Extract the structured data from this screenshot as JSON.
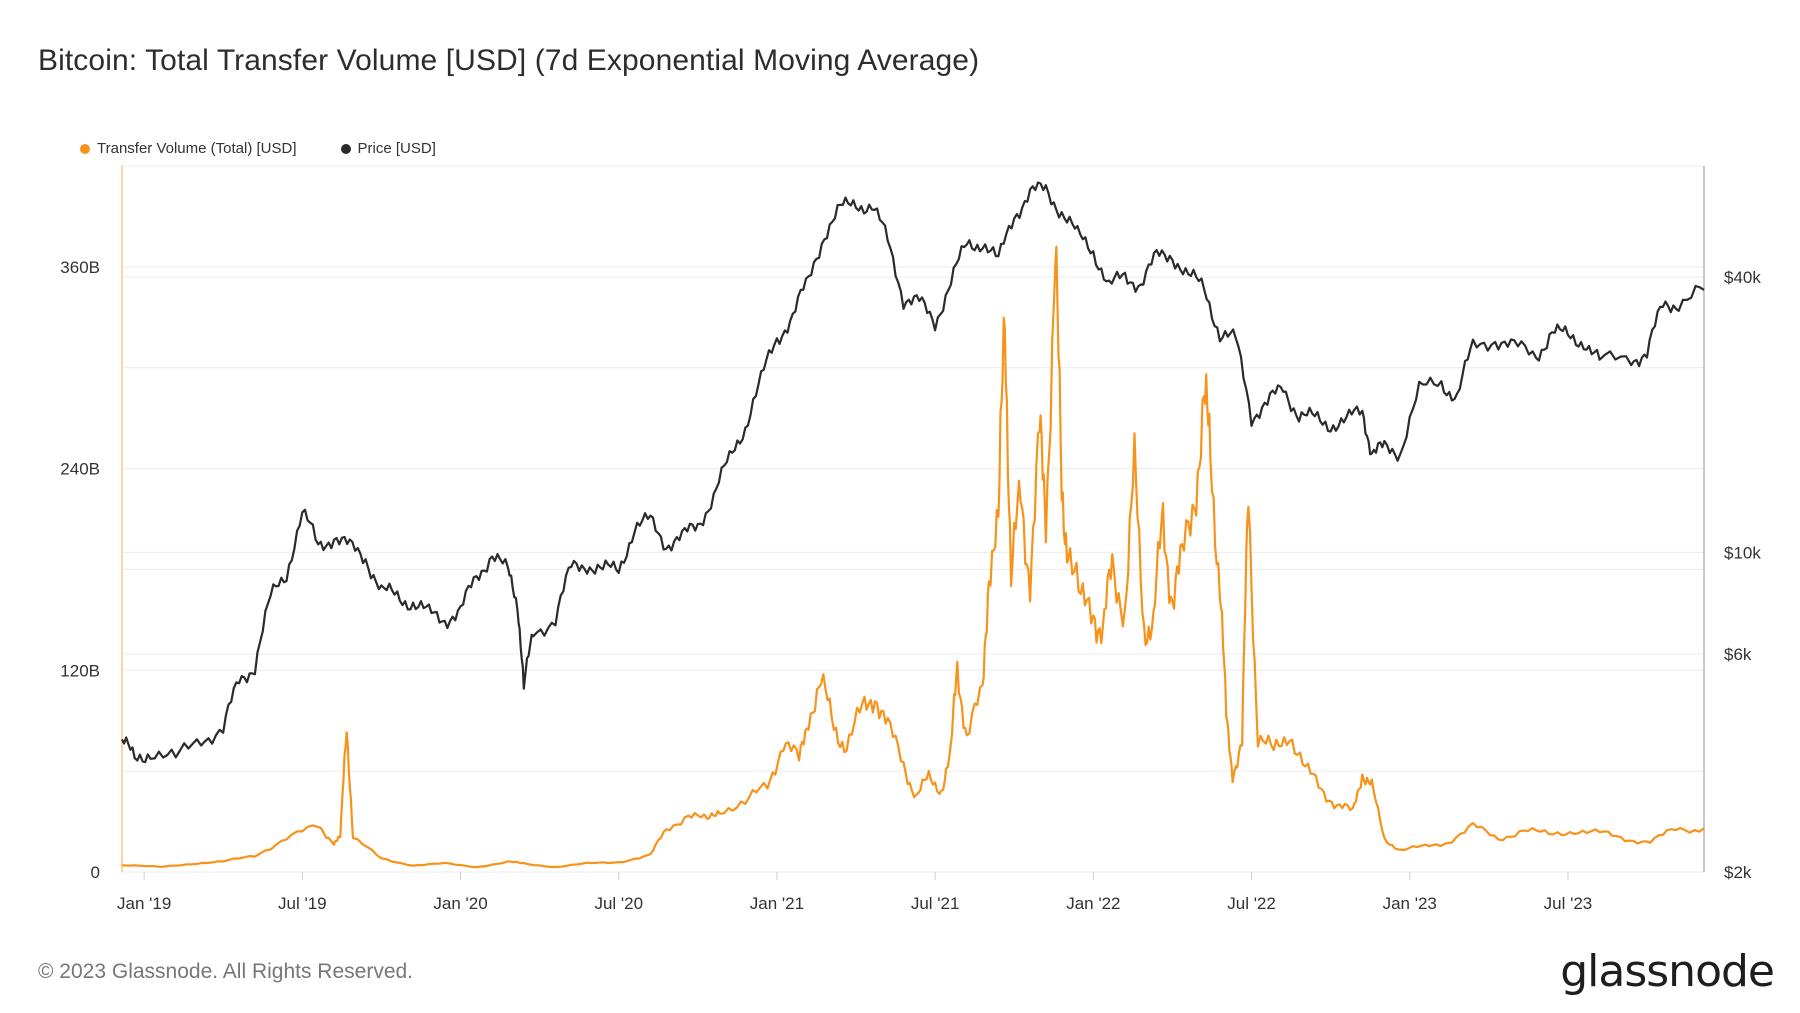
{
  "title": "Bitcoin: Total Transfer Volume [USD] (7d Exponential Moving Average)",
  "footer": "© 2023 Glassnode. All Rights Reserved.",
  "brand": "glassnode",
  "colors": {
    "volume": "#f7931a",
    "price": "#2b2b2b",
    "grid": "#ececec",
    "axis": "#cfcfcf"
  },
  "chart_data": {
    "type": "line",
    "title": "Bitcoin: Total Transfer Volume [USD] (7d Exponential Moving Average)",
    "legend_position": "top-left",
    "x_domain": [
      2018.93,
      2023.93
    ],
    "x_ticks": [
      {
        "label": "Jan '19",
        "x": 2019.0
      },
      {
        "label": "Jul '19",
        "x": 2019.5
      },
      {
        "label": "Jan '20",
        "x": 2020.0
      },
      {
        "label": "Jul '20",
        "x": 2020.5
      },
      {
        "label": "Jan '21",
        "x": 2021.0
      },
      {
        "label": "Jul '21",
        "x": 2021.5
      },
      {
        "label": "Jan '22",
        "x": 2022.0
      },
      {
        "label": "Jul '22",
        "x": 2022.5
      },
      {
        "label": "Jan '23",
        "x": 2023.0
      },
      {
        "label": "Jul '23",
        "x": 2023.5
      }
    ],
    "y_left": {
      "min": 0,
      "max": 420,
      "unit": "B",
      "ticks": [
        {
          "label": "0",
          "v": 0
        },
        {
          "label": "120B",
          "v": 120
        },
        {
          "label": "240B",
          "v": 240
        },
        {
          "label": "360B",
          "v": 360
        }
      ]
    },
    "y_right": {
      "scale": "log",
      "min": 2000,
      "max": 70000,
      "ticks": [
        {
          "label": "$2k",
          "v": 2000
        },
        {
          "label": "$6k",
          "v": 6000
        },
        {
          "label": "$10k",
          "v": 10000
        },
        {
          "label": "$40k",
          "v": 40000
        }
      ]
    },
    "series": [
      {
        "name": "Transfer Volume (Total) [USD]",
        "axis": "left",
        "color": "#f7931a",
        "points": [
          [
            2018.93,
            4
          ],
          [
            2019.05,
            3
          ],
          [
            2019.15,
            5
          ],
          [
            2019.25,
            6
          ],
          [
            2019.35,
            10
          ],
          [
            2019.45,
            20
          ],
          [
            2019.55,
            27
          ],
          [
            2019.6,
            18
          ],
          [
            2019.62,
            20
          ],
          [
            2019.64,
            90
          ],
          [
            2019.66,
            20
          ],
          [
            2019.75,
            8
          ],
          [
            2019.85,
            4
          ],
          [
            2019.95,
            5
          ],
          [
            2020.05,
            3
          ],
          [
            2020.15,
            6
          ],
          [
            2020.2,
            5
          ],
          [
            2020.3,
            3
          ],
          [
            2020.4,
            5
          ],
          [
            2020.5,
            6
          ],
          [
            2020.6,
            10
          ],
          [
            2020.65,
            25
          ],
          [
            2020.72,
            35
          ],
          [
            2020.78,
            30
          ],
          [
            2020.82,
            38
          ],
          [
            2020.9,
            40
          ],
          [
            2020.97,
            52
          ],
          [
            2021.02,
            78
          ],
          [
            2021.07,
            65
          ],
          [
            2021.1,
            95
          ],
          [
            2021.14,
            110
          ],
          [
            2021.18,
            88
          ],
          [
            2021.22,
            75
          ],
          [
            2021.27,
            95
          ],
          [
            2021.31,
            108
          ],
          [
            2021.35,
            85
          ],
          [
            2021.4,
            65
          ],
          [
            2021.44,
            45
          ],
          [
            2021.48,
            55
          ],
          [
            2021.52,
            50
          ],
          [
            2021.55,
            70
          ],
          [
            2021.57,
            125
          ],
          [
            2021.6,
            80
          ],
          [
            2021.65,
            105
          ],
          [
            2021.67,
            185
          ],
          [
            2021.7,
            200
          ],
          [
            2021.72,
            345
          ],
          [
            2021.74,
            175
          ],
          [
            2021.77,
            220
          ],
          [
            2021.8,
            180
          ],
          [
            2021.83,
            255
          ],
          [
            2021.85,
            215
          ],
          [
            2021.88,
            370
          ],
          [
            2021.9,
            220
          ],
          [
            2021.92,
            200
          ],
          [
            2021.96,
            155
          ],
          [
            2022.0,
            160
          ],
          [
            2022.03,
            140
          ],
          [
            2022.06,
            180
          ],
          [
            2022.1,
            160
          ],
          [
            2022.13,
            235
          ],
          [
            2022.16,
            150
          ],
          [
            2022.19,
            145
          ],
          [
            2022.22,
            210
          ],
          [
            2022.25,
            165
          ],
          [
            2022.28,
            180
          ],
          [
            2022.32,
            230
          ],
          [
            2022.35,
            275
          ],
          [
            2022.37,
            250
          ],
          [
            2022.4,
            175
          ],
          [
            2022.42,
            90
          ],
          [
            2022.44,
            60
          ],
          [
            2022.47,
            75
          ],
          [
            2022.49,
            228
          ],
          [
            2022.52,
            80
          ],
          [
            2022.57,
            70
          ],
          [
            2022.62,
            85
          ],
          [
            2022.67,
            60
          ],
          [
            2022.72,
            50
          ],
          [
            2022.77,
            40
          ],
          [
            2022.82,
            35
          ],
          [
            2022.85,
            60
          ],
          [
            2022.88,
            50
          ],
          [
            2022.92,
            20
          ],
          [
            2022.97,
            13
          ],
          [
            2023.05,
            15
          ],
          [
            2023.12,
            18
          ],
          [
            2023.2,
            27
          ],
          [
            2023.28,
            20
          ],
          [
            2023.36,
            25
          ],
          [
            2023.44,
            22
          ],
          [
            2023.52,
            25
          ],
          [
            2023.6,
            23
          ],
          [
            2023.68,
            20
          ],
          [
            2023.76,
            18
          ],
          [
            2023.84,
            25
          ],
          [
            2023.93,
            26
          ]
        ]
      },
      {
        "name": "Price [USD]",
        "axis": "right",
        "color": "#2b2b2b",
        "points": [
          [
            2018.93,
            3900
          ],
          [
            2018.97,
            3500
          ],
          [
            2019.02,
            3700
          ],
          [
            2019.1,
            3500
          ],
          [
            2019.18,
            3950
          ],
          [
            2019.25,
            4100
          ],
          [
            2019.3,
            5200
          ],
          [
            2019.35,
            5700
          ],
          [
            2019.4,
            7900
          ],
          [
            2019.45,
            9000
          ],
          [
            2019.5,
            12200
          ],
          [
            2019.55,
            10300
          ],
          [
            2019.6,
            10900
          ],
          [
            2019.65,
            10200
          ],
          [
            2019.7,
            9800
          ],
          [
            2019.75,
            8200
          ],
          [
            2019.8,
            8000
          ],
          [
            2019.85,
            7800
          ],
          [
            2019.9,
            7300
          ],
          [
            2019.95,
            7200
          ],
          [
            2020.0,
            7400
          ],
          [
            2020.05,
            8800
          ],
          [
            2020.1,
            10000
          ],
          [
            2020.15,
            9000
          ],
          [
            2020.18,
            7800
          ],
          [
            2020.2,
            5000
          ],
          [
            2020.23,
            6700
          ],
          [
            2020.3,
            7200
          ],
          [
            2020.35,
            9200
          ],
          [
            2020.4,
            9500
          ],
          [
            2020.45,
            9100
          ],
          [
            2020.5,
            9200
          ],
          [
            2020.55,
            11300
          ],
          [
            2020.6,
            11700
          ],
          [
            2020.65,
            10500
          ],
          [
            2020.7,
            10700
          ],
          [
            2020.75,
            11500
          ],
          [
            2020.8,
            13300
          ],
          [
            2020.85,
            15900
          ],
          [
            2020.9,
            19000
          ],
          [
            2020.95,
            23700
          ],
          [
            2021.0,
            29400
          ],
          [
            2021.05,
            33000
          ],
          [
            2021.1,
            39000
          ],
          [
            2021.15,
            50000
          ],
          [
            2021.2,
            56000
          ],
          [
            2021.25,
            58500
          ],
          [
            2021.3,
            57000
          ],
          [
            2021.35,
            48000
          ],
          [
            2021.4,
            36000
          ],
          [
            2021.45,
            35000
          ],
          [
            2021.5,
            32000
          ],
          [
            2021.55,
            39000
          ],
          [
            2021.6,
            47000
          ],
          [
            2021.65,
            48000
          ],
          [
            2021.7,
            43000
          ],
          [
            2021.75,
            55000
          ],
          [
            2021.8,
            61000
          ],
          [
            2021.85,
            62000
          ],
          [
            2021.9,
            56000
          ],
          [
            2021.95,
            49000
          ],
          [
            2022.0,
            46000
          ],
          [
            2022.05,
            38000
          ],
          [
            2022.1,
            40000
          ],
          [
            2022.15,
            39000
          ],
          [
            2022.2,
            44000
          ],
          [
            2022.25,
            45000
          ],
          [
            2022.3,
            40000
          ],
          [
            2022.35,
            38000
          ],
          [
            2022.4,
            30000
          ],
          [
            2022.45,
            29000
          ],
          [
            2022.5,
            20000
          ],
          [
            2022.55,
            21000
          ],
          [
            2022.6,
            23000
          ],
          [
            2022.65,
            20000
          ],
          [
            2022.7,
            19500
          ],
          [
            2022.75,
            19200
          ],
          [
            2022.8,
            19300
          ],
          [
            2022.85,
            20500
          ],
          [
            2022.88,
            16500
          ],
          [
            2022.92,
            16800
          ],
          [
            2022.97,
            16700
          ],
          [
            2023.03,
            22500
          ],
          [
            2023.1,
            23500
          ],
          [
            2023.15,
            22000
          ],
          [
            2023.2,
            28000
          ],
          [
            2023.27,
            29500
          ],
          [
            2023.33,
            28000
          ],
          [
            2023.4,
            27000
          ],
          [
            2023.45,
            30500
          ],
          [
            2023.5,
            29500
          ],
          [
            2023.55,
            29200
          ],
          [
            2023.6,
            26000
          ],
          [
            2023.7,
            26800
          ],
          [
            2023.75,
            27200
          ],
          [
            2023.8,
            34500
          ],
          [
            2023.85,
            35500
          ],
          [
            2023.93,
            37500
          ]
        ]
      }
    ]
  }
}
